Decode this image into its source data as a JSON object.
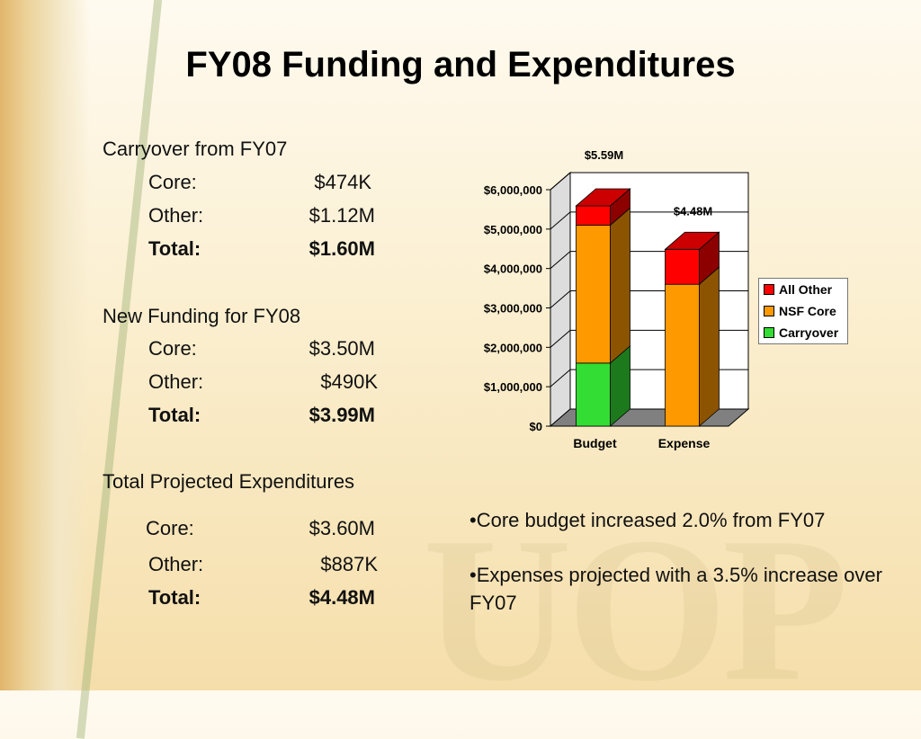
{
  "slide": {
    "title": "FY08 Funding and Expenditures",
    "carryover": {
      "heading": "Carryover from FY07",
      "rows": [
        {
          "label": "Core:",
          "value": "$474K"
        },
        {
          "label": "Other:",
          "value": "$1.12M"
        },
        {
          "label": "Total:",
          "value": "$1.60M"
        }
      ]
    },
    "new_funding": {
      "heading": "New Funding for FY08",
      "rows": [
        {
          "label": "Core:",
          "value": "$3.50M"
        },
        {
          "label": "Other:",
          "value": "$490K"
        },
        {
          "label": "Total:",
          "value": "$3.99M"
        }
      ]
    },
    "expenditures": {
      "heading": "Total Projected Expenditures",
      "rows": [
        {
          "label": "Core:",
          "value": "$3.60M"
        },
        {
          "label": "Other:",
          "value": "$887K"
        },
        {
          "label": "Total:",
          "value": "$4.48M"
        }
      ]
    },
    "bullets": [
      "•Core budget increased 2.0% from FY07",
      "•Expenses projected with a 3.5% increase over FY07"
    ],
    "watermark": "UOP"
  },
  "chart_data": {
    "type": "bar",
    "stacked": true,
    "three_d": true,
    "categories": [
      "Budget",
      "Expense"
    ],
    "series": [
      {
        "name": "Carryover",
        "color": "#33dd33",
        "values": [
          1600000,
          0
        ]
      },
      {
        "name": "NSF Core",
        "color": "#ff9900",
        "values": [
          3500000,
          3600000
        ]
      },
      {
        "name": "All Other",
        "color": "#ff0000",
        "values": [
          490000,
          887000
        ]
      }
    ],
    "data_labels": [
      "$5.59M",
      "$4.48M"
    ],
    "yticks": [
      "$0",
      "$1,000,000",
      "$2,000,000",
      "$3,000,000",
      "$4,000,000",
      "$5,000,000",
      "$6,000,000"
    ],
    "ylim": [
      0,
      6000000
    ],
    "grid": true,
    "legend": "right",
    "legend_order": [
      "All Other",
      "NSF Core",
      "Carryover"
    ]
  }
}
